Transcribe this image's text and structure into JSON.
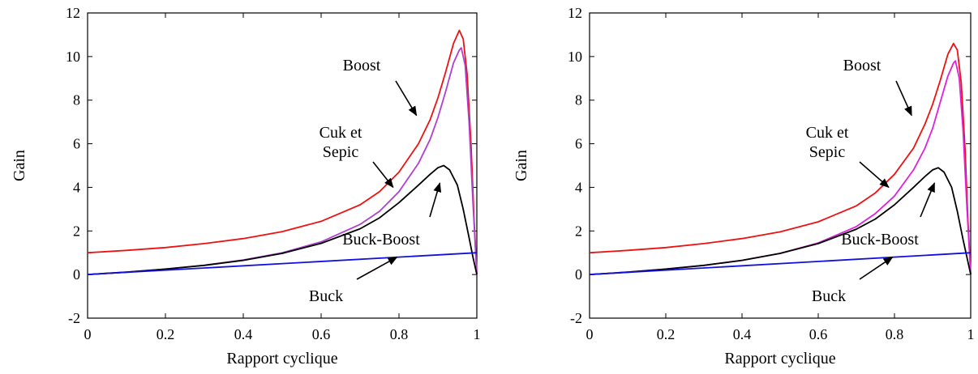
{
  "chart_data": [
    {
      "type": "line",
      "title": "",
      "xlabel": "Rapport cyclique",
      "ylabel": "Gain",
      "xlim": [
        0,
        1
      ],
      "ylim": [
        -2,
        12
      ],
      "xticks": [
        "0",
        "0.2",
        "0.4",
        "0.6",
        "0.8",
        "1"
      ],
      "yticks": [
        "-2",
        "0",
        "2",
        "4",
        "6",
        "8",
        "10",
        "12"
      ],
      "grid": false,
      "series": [
        {
          "key": "boost",
          "color": "#ee1111",
          "x": [
            0,
            0.1,
            0.2,
            0.3,
            0.4,
            0.5,
            0.6,
            0.7,
            0.75,
            0.8,
            0.85,
            0.88,
            0.9,
            0.92,
            0.94,
            0.955,
            0.965,
            0.975,
            0.985,
            0.993,
            1.0
          ],
          "y": [
            1.0,
            1.11,
            1.24,
            1.42,
            1.65,
            1.97,
            2.44,
            3.2,
            3.8,
            4.7,
            6.0,
            7.1,
            8.1,
            9.3,
            10.6,
            11.2,
            10.8,
            9.2,
            6.0,
            2.5,
            0.0
          ]
        },
        {
          "key": "cuk_sepic",
          "color": "#b040d0",
          "x": [
            0,
            0.1,
            0.2,
            0.3,
            0.4,
            0.5,
            0.6,
            0.7,
            0.75,
            0.8,
            0.85,
            0.88,
            0.9,
            0.92,
            0.94,
            0.955,
            0.96,
            0.97,
            0.98,
            0.99,
            1.0
          ],
          "y": [
            0.0,
            0.11,
            0.25,
            0.43,
            0.67,
            1.0,
            1.5,
            2.3,
            2.9,
            3.8,
            5.1,
            6.2,
            7.2,
            8.4,
            9.7,
            10.3,
            10.4,
            9.6,
            7.0,
            3.3,
            0.0
          ]
        },
        {
          "key": "buck_boost",
          "color": "#000000",
          "x": [
            0,
            0.1,
            0.2,
            0.3,
            0.4,
            0.5,
            0.6,
            0.7,
            0.75,
            0.8,
            0.85,
            0.88,
            0.9,
            0.915,
            0.93,
            0.95,
            0.965,
            0.98,
            0.99,
            1.0
          ],
          "y": [
            0.0,
            0.11,
            0.25,
            0.42,
            0.65,
            0.97,
            1.43,
            2.1,
            2.6,
            3.3,
            4.1,
            4.6,
            4.9,
            5.0,
            4.8,
            4.1,
            3.0,
            1.7,
            0.8,
            0.0
          ]
        },
        {
          "key": "buck",
          "color": "#1111dd",
          "x": [
            0,
            1.0
          ],
          "y": [
            0.0,
            1.0
          ]
        }
      ],
      "annotations": [
        {
          "key": "boost",
          "lines": [
            "Boost"
          ]
        },
        {
          "key": "cuk_sepic",
          "lines": [
            "Cuk et",
            "Sepic"
          ]
        },
        {
          "key": "buck_boost",
          "lines": [
            "Buck-Boost"
          ]
        },
        {
          "key": "buck",
          "lines": [
            "Buck"
          ]
        }
      ]
    },
    {
      "type": "line",
      "title": "",
      "xlabel": "Rapport cyclique",
      "ylabel": "Gain",
      "xlim": [
        0,
        1
      ],
      "ylim": [
        -2,
        12
      ],
      "xticks": [
        "0",
        "0.2",
        "0.4",
        "0.6",
        "0.8",
        "1"
      ],
      "yticks": [
        "-2",
        "0",
        "2",
        "4",
        "6",
        "8",
        "10",
        "12"
      ],
      "grid": false,
      "series": [
        {
          "key": "boost",
          "color": "#ee1111",
          "x": [
            0,
            0.1,
            0.2,
            0.3,
            0.4,
            0.5,
            0.6,
            0.7,
            0.75,
            0.8,
            0.85,
            0.88,
            0.9,
            0.92,
            0.94,
            0.955,
            0.965,
            0.975,
            0.985,
            0.993,
            1.0
          ],
          "y": [
            1.0,
            1.11,
            1.24,
            1.42,
            1.65,
            1.96,
            2.42,
            3.15,
            3.75,
            4.6,
            5.8,
            6.9,
            7.8,
            8.9,
            10.1,
            10.6,
            10.3,
            8.8,
            5.8,
            2.4,
            0.0
          ]
        },
        {
          "key": "cuk_sepic",
          "color": "#dd22dd",
          "x": [
            0,
            0.1,
            0.2,
            0.3,
            0.4,
            0.5,
            0.6,
            0.7,
            0.75,
            0.8,
            0.85,
            0.88,
            0.9,
            0.92,
            0.94,
            0.955,
            0.96,
            0.97,
            0.98,
            0.99,
            1.0
          ],
          "y": [
            0.0,
            0.11,
            0.25,
            0.42,
            0.65,
            0.97,
            1.45,
            2.2,
            2.8,
            3.6,
            4.8,
            5.8,
            6.7,
            7.9,
            9.1,
            9.7,
            9.8,
            9.0,
            6.6,
            3.1,
            0.0
          ]
        },
        {
          "key": "buck_boost",
          "color": "#000000",
          "x": [
            0,
            0.1,
            0.2,
            0.3,
            0.4,
            0.5,
            0.6,
            0.7,
            0.75,
            0.8,
            0.85,
            0.88,
            0.9,
            0.915,
            0.93,
            0.95,
            0.965,
            0.98,
            0.99,
            1.0
          ],
          "y": [
            0.0,
            0.11,
            0.25,
            0.42,
            0.65,
            0.97,
            1.42,
            2.08,
            2.55,
            3.2,
            4.0,
            4.5,
            4.8,
            4.9,
            4.7,
            4.0,
            2.9,
            1.6,
            0.8,
            0.0
          ]
        },
        {
          "key": "buck",
          "color": "#1111dd",
          "x": [
            0,
            1.0
          ],
          "y": [
            0.0,
            1.0
          ]
        }
      ],
      "annotations": [
        {
          "key": "boost",
          "lines": [
            "Boost"
          ]
        },
        {
          "key": "cuk_sepic",
          "lines": [
            "Cuk et",
            "Sepic"
          ]
        },
        {
          "key": "buck_boost",
          "lines": [
            "Buck-Boost"
          ]
        },
        {
          "key": "buck",
          "lines": [
            "Buck"
          ]
        }
      ]
    }
  ]
}
